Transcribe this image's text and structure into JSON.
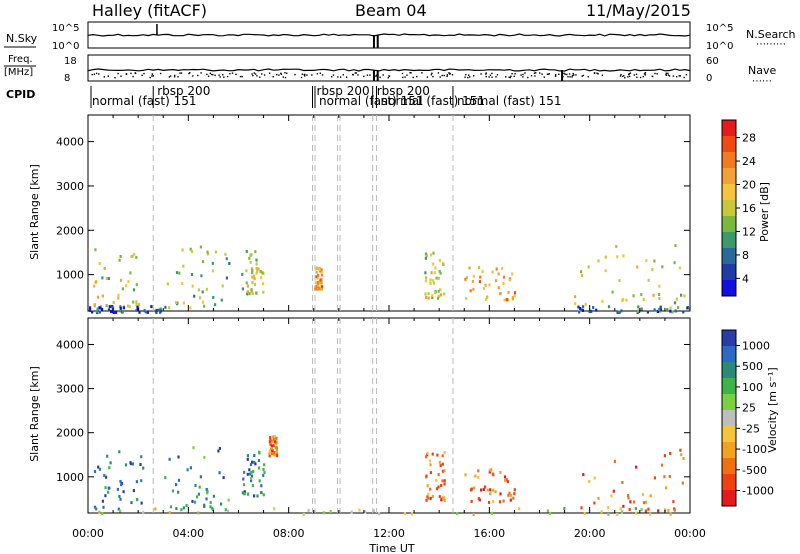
{
  "header": {
    "station": "Halley",
    "mode": "(fitACF)",
    "beam": "Beam 04",
    "date": "11/May/2015"
  },
  "strips": {
    "nsky_label": "N.Sky",
    "nsearch_label": "N.Search",
    "nsky_ticks": [
      "10^5",
      "10^0"
    ],
    "nsearch_ticks": [
      "10^5",
      "10^0"
    ],
    "freq_label_1": "Freq.",
    "freq_label_2": "[MHz]",
    "freq_ticks": [
      "18",
      "8"
    ],
    "nave_label": "Nave",
    "nave_ticks": [
      "60",
      "0"
    ],
    "cpid_label": "CPID"
  },
  "cpid_segments": [
    {
      "label": "normal (fast) 151",
      "start": 0.0
    },
    {
      "label": "rbsp 200",
      "start": 2.6
    },
    {
      "label": "rbsp 200",
      "start": 8.95
    },
    {
      "label": "normal (fast) 151",
      "start": 9.05
    },
    {
      "label": "rbsp 200",
      "start": 11.35
    },
    {
      "label": "normal (fast) 151",
      "start": 11.5
    },
    {
      "label": "normal (fast) 151",
      "start": 14.55
    }
  ],
  "colorbars": {
    "power": {
      "label": "Power [dB]",
      "ticks": [
        "28",
        "24",
        "20",
        "16",
        "12",
        "8",
        "4"
      ],
      "colors": [
        "#e41a1c",
        "#f04a10",
        "#f47a20",
        "#f2a03a",
        "#f4c43c",
        "#c8c83a",
        "#7ab840",
        "#3c9a6a",
        "#2a6a9a",
        "#1c3ca8",
        "#1010e0"
      ]
    },
    "velocity": {
      "label": "Velocity [m s⁻¹]",
      "ticks": [
        "1000",
        "500",
        "100",
        "25",
        "-25",
        "-100",
        "-500",
        "-1000"
      ],
      "colors": [
        "#2a3ca8",
        "#2a6ac0",
        "#2a8a7a",
        "#3cb44a",
        "#7ad040",
        "#bebebe",
        "#f4c43c",
        "#f4a020",
        "#f07010",
        "#f04010",
        "#e41a1c"
      ]
    }
  },
  "chart_data": [
    {
      "type": "heatmap",
      "name": "power",
      "ylabel": "Slant Range [km]",
      "xlabel": "Time UT",
      "xlim_hours": [
        0,
        24
      ],
      "ylim_km": [
        180,
        4600
      ],
      "xticks": [
        "00:00",
        "04:00",
        "08:00",
        "12:00",
        "16:00",
        "20:00",
        "00:00"
      ],
      "yticks": [
        1000,
        2000,
        3000,
        4000
      ],
      "regions": [
        {
          "t0": 0.2,
          "t1": 2.2,
          "r0": 300,
          "r1": 1650,
          "level": 5
        },
        {
          "t0": 3.0,
          "t1": 5.6,
          "r0": 280,
          "r1": 1700,
          "level": 6
        },
        {
          "t0": 6.1,
          "t1": 7.0,
          "r0": 600,
          "r1": 1600,
          "level": 5
        },
        {
          "t0": 9.0,
          "t1": 9.3,
          "r0": 700,
          "r1": 1200,
          "level": 3
        },
        {
          "t0": 13.4,
          "t1": 14.2,
          "r0": 500,
          "r1": 1600,
          "level": 5
        },
        {
          "t0": 15.0,
          "t1": 17.0,
          "r0": 450,
          "r1": 1200,
          "level": 3
        },
        {
          "t0": 19.3,
          "t1": 23.8,
          "r0": 250,
          "r1": 1700,
          "level": 5
        },
        {
          "t0": 0.0,
          "t1": 3.0,
          "r0": 180,
          "r1": 320,
          "level": 9
        },
        {
          "t0": 19.5,
          "t1": 24.0,
          "r0": 180,
          "r1": 320,
          "level": 8
        }
      ]
    },
    {
      "type": "heatmap",
      "name": "velocity",
      "ylabel": "Slant Range [km]",
      "xlabel": "Time UT",
      "xlim_hours": [
        0,
        24
      ],
      "ylim_km": [
        180,
        4600
      ],
      "xticks": [
        "00:00",
        "04:00",
        "08:00",
        "12:00",
        "16:00",
        "20:00",
        "00:00"
      ],
      "yticks": [
        1000,
        2000,
        3000,
        4000
      ],
      "regions": [
        {
          "t0": 0.2,
          "t1": 2.2,
          "r0": 300,
          "r1": 1650,
          "level": 1
        },
        {
          "t0": 3.0,
          "t1": 5.6,
          "r0": 280,
          "r1": 1700,
          "level": 2
        },
        {
          "t0": 6.1,
          "t1": 7.0,
          "r0": 600,
          "r1": 1600,
          "level": 2
        },
        {
          "t0": 7.2,
          "t1": 7.5,
          "r0": 1500,
          "r1": 1950,
          "level": 8
        },
        {
          "t0": 13.4,
          "t1": 14.2,
          "r0": 500,
          "r1": 1600,
          "level": 8
        },
        {
          "t0": 15.0,
          "t1": 17.0,
          "r0": 450,
          "r1": 1200,
          "level": 8
        },
        {
          "t0": 19.3,
          "t1": 23.8,
          "r0": 250,
          "r1": 1700,
          "level": 8
        },
        {
          "t0": 0.0,
          "t1": 24.0,
          "r0": 180,
          "r1": 320,
          "level": 5
        }
      ]
    }
  ]
}
